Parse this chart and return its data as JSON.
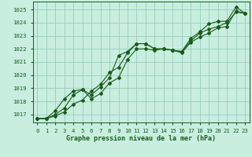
{
  "title": "Graphe pression niveau de la mer (hPa)",
  "bg_color": "#c8eee0",
  "grid_color": "#99ccbb",
  "line_color": "#1a5c1a",
  "xlim": [
    -0.5,
    23.5
  ],
  "ylim": [
    1016.4,
    1025.6
  ],
  "yticks": [
    1017,
    1018,
    1019,
    1020,
    1021,
    1022,
    1023,
    1024,
    1025
  ],
  "xticks": [
    0,
    1,
    2,
    3,
    4,
    5,
    6,
    7,
    8,
    9,
    10,
    11,
    12,
    13,
    14,
    15,
    16,
    17,
    18,
    19,
    20,
    21,
    22,
    23
  ],
  "series1_x": [
    0,
    1,
    2,
    3,
    4,
    5,
    6,
    7,
    8,
    9,
    10,
    11,
    12,
    13,
    14,
    15,
    16,
    17,
    18,
    19,
    20,
    21,
    22,
    23
  ],
  "series1_y": [
    1016.7,
    1016.7,
    1016.9,
    1017.2,
    1017.8,
    1018.1,
    1018.8,
    1019.3,
    1020.2,
    1020.6,
    1021.7,
    1022.4,
    1022.4,
    1022.0,
    1022.0,
    1021.9,
    1021.8,
    1022.6,
    1023.2,
    1023.5,
    1023.7,
    1024.0,
    1024.8,
    1024.7
  ],
  "series2_x": [
    0,
    1,
    2,
    3,
    4,
    5,
    6,
    7,
    8,
    9,
    10,
    11,
    12,
    13,
    14,
    15,
    16,
    17,
    18,
    19,
    20,
    21,
    22,
    23
  ],
  "series2_y": [
    1016.7,
    1016.7,
    1017.0,
    1017.5,
    1018.5,
    1018.9,
    1018.2,
    1018.6,
    1019.4,
    1019.8,
    1021.2,
    1022.0,
    1022.0,
    1021.9,
    1022.0,
    1021.9,
    1021.7,
    1022.5,
    1022.9,
    1023.2,
    1023.6,
    1023.7,
    1024.9,
    1024.7
  ],
  "series3_x": [
    0,
    1,
    2,
    3,
    4,
    5,
    6,
    7,
    8,
    9,
    10,
    11,
    12,
    13,
    14,
    15,
    16,
    17,
    18,
    19,
    20,
    21,
    22,
    23
  ],
  "series3_y": [
    1016.7,
    1016.7,
    1017.3,
    1018.2,
    1018.8,
    1018.9,
    1018.5,
    1019.1,
    1019.8,
    1021.5,
    1021.8,
    1022.4,
    1022.4,
    1022.0,
    1022.0,
    1021.9,
    1021.8,
    1022.8,
    1023.3,
    1023.9,
    1024.1,
    1024.1,
    1025.2,
    1024.7
  ],
  "xlabel_fontsize": 6.0,
  "tick_fontsize": 5.2
}
